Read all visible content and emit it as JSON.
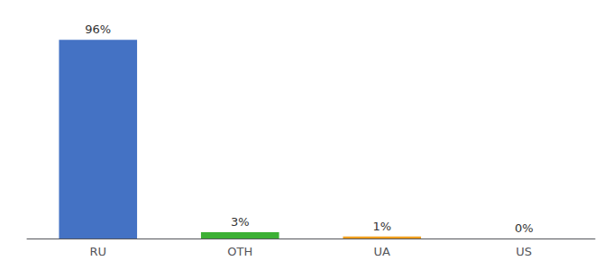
{
  "chart_data": {
    "type": "bar",
    "categories": [
      "RU",
      "OTH",
      "UA",
      "US"
    ],
    "values": [
      96,
      3,
      1,
      0
    ],
    "value_labels": [
      "96%",
      "3%",
      "1%",
      "0%"
    ],
    "colors": [
      "#4472c4",
      "#3cb034",
      "#f0a020",
      "#4472c4"
    ],
    "ylim": [
      0,
      100
    ],
    "grid": false,
    "data_labels": true,
    "tick_labels": "x"
  }
}
